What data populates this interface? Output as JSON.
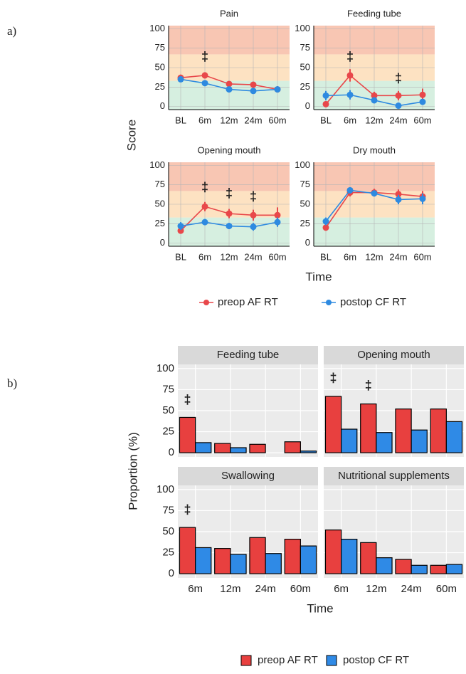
{
  "chart_data": [
    {
      "type": "line",
      "label": "a)",
      "y_label": "Score",
      "x_label": "Time",
      "facet_axes": "all",
      "categories": [
        "BL",
        "6m",
        "12m",
        "24m",
        "60m"
      ],
      "ylim": [
        -4,
        104
      ],
      "yticks": [
        0,
        25,
        50,
        75,
        100
      ],
      "band_breaks": [
        33,
        67
      ],
      "band_colors": [
        "#d6efe0",
        "#fde2c2",
        "#f8c6b3"
      ],
      "series": [
        {
          "name": "preop AF RT",
          "color": "#e8474a"
        },
        {
          "name": "postop CF RT",
          "color": "#2e8ae0"
        }
      ],
      "facets": [
        {
          "title": "Pain",
          "series": [
            {
              "values": [
                37,
                40,
                29,
                28,
                22
              ],
              "errors": [
                4,
                4,
                3,
                3,
                4
              ]
            },
            {
              "values": [
                35,
                30,
                22,
                20,
                22
              ],
              "errors": [
                3,
                3,
                3,
                3,
                4
              ]
            }
          ],
          "annotations": [
            {
              "label": "‡",
              "x": "6m",
              "y": 63
            }
          ]
        },
        {
          "title": "Feeding tube",
          "series": [
            {
              "values": [
                3,
                40,
                14,
                14,
                15
              ],
              "errors": [
                2,
                8,
                5,
                6,
                8
              ]
            },
            {
              "values": [
                14,
                15,
                8,
                1,
                6
              ],
              "errors": [
                6,
                6,
                4,
                1,
                3
              ]
            }
          ],
          "annotations": [
            {
              "label": "‡",
              "x": "6m",
              "y": 63
            },
            {
              "label": "‡",
              "x": "24m",
              "y": 35
            }
          ]
        },
        {
          "title": "Opening mouth",
          "series": [
            {
              "values": [
                16,
                47,
                38,
                36,
                36
              ],
              "errors": [
                4,
                6,
                6,
                7,
                10
              ]
            },
            {
              "values": [
                22,
                27,
                22,
                21,
                27
              ],
              "errors": [
                5,
                4,
                4,
                5,
                6
              ]
            }
          ],
          "annotations": [
            {
              "label": "‡",
              "x": "6m",
              "y": 71
            },
            {
              "label": "‡",
              "x": "12m",
              "y": 63
            },
            {
              "label": "‡",
              "x": "24m",
              "y": 59
            }
          ]
        },
        {
          "title": "Dry mouth",
          "series": [
            {
              "values": [
                20,
                65,
                65,
                63,
                60
              ],
              "errors": [
                4,
                5,
                5,
                6,
                7
              ]
            },
            {
              "values": [
                28,
                68,
                64,
                56,
                57
              ],
              "errors": [
                5,
                4,
                4,
                6,
                7
              ]
            }
          ],
          "annotations": []
        }
      ]
    },
    {
      "type": "bar",
      "label": "b)",
      "y_label": "Proportion (%)",
      "x_label": "Time",
      "facet_axes": "outer",
      "categories": [
        "6m",
        "12m",
        "24m",
        "60m"
      ],
      "ylim": [
        -5,
        105
      ],
      "yticks": [
        0,
        25,
        50,
        75,
        100
      ],
      "series": [
        {
          "name": "preop AF RT",
          "color": "#e8403f"
        },
        {
          "name": "postop CF RT",
          "color": "#2f8ae6"
        }
      ],
      "facets": [
        {
          "title": "Feeding tube",
          "series": [
            {
              "values": [
                42,
                11,
                10,
                13
              ]
            },
            {
              "values": [
                12,
                6,
                0,
                2
              ]
            }
          ],
          "annotations": [
            {
              "label": "‡",
              "x": "6m",
              "y": 62
            }
          ]
        },
        {
          "title": "Opening mouth",
          "series": [
            {
              "values": [
                67,
                58,
                52,
                52
              ]
            },
            {
              "values": [
                28,
                24,
                27,
                37
              ]
            }
          ],
          "annotations": [
            {
              "label": "‡",
              "x": "6m",
              "y": 88
            },
            {
              "label": "‡",
              "x": "12m",
              "y": 79
            }
          ]
        },
        {
          "title": "Swallowing",
          "series": [
            {
              "values": [
                55,
                30,
                43,
                41
              ]
            },
            {
              "values": [
                31,
                23,
                24,
                33
              ]
            }
          ],
          "annotations": [
            {
              "label": "‡",
              "x": "6m",
              "y": 75
            }
          ]
        },
        {
          "title": "Nutritional supplements",
          "series": [
            {
              "values": [
                52,
                37,
                17,
                10
              ]
            },
            {
              "values": [
                41,
                19,
                10,
                11
              ]
            }
          ],
          "annotations": []
        }
      ]
    }
  ]
}
